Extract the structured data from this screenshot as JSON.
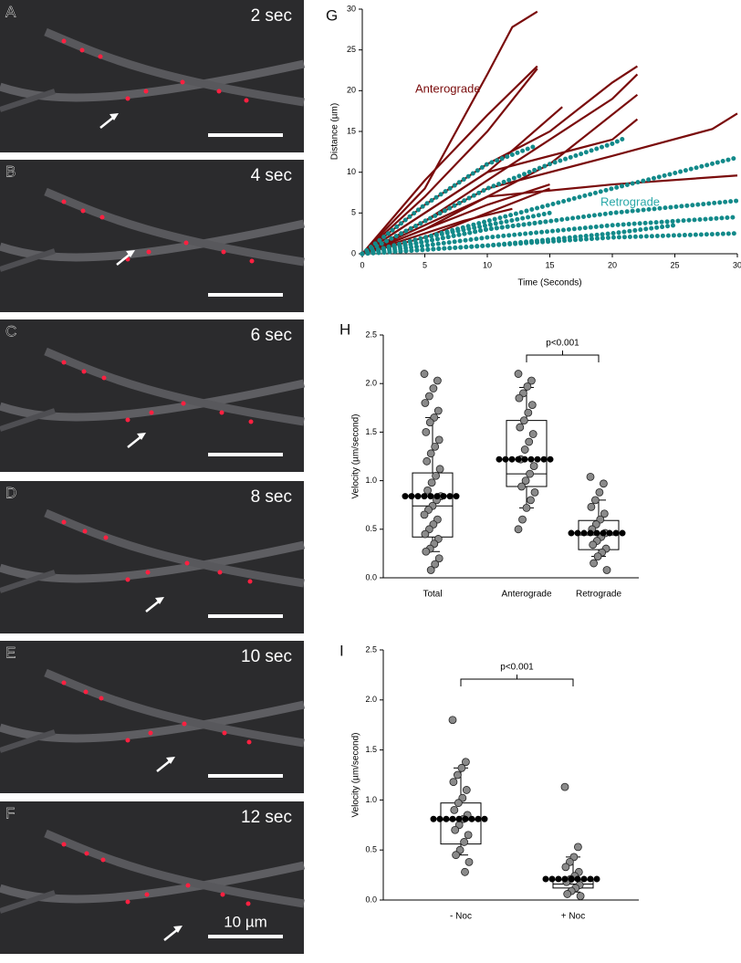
{
  "panels": [
    {
      "label": "A",
      "time": "2 sec"
    },
    {
      "label": "B",
      "time": "4 sec"
    },
    {
      "label": "C",
      "time": "6 sec"
    },
    {
      "label": "D",
      "time": "8 sec"
    },
    {
      "label": "E",
      "time": "10 sec"
    },
    {
      "label": "F",
      "time": "12 sec",
      "scale_label": "10 µm"
    }
  ],
  "chart_data": [
    {
      "type": "track",
      "label": "G",
      "xlabel": "Time (Seconds)",
      "ylabel": "Distance (µm)",
      "xlim": [
        0,
        30
      ],
      "xticks": [
        0,
        5,
        10,
        15,
        20,
        25,
        30
      ],
      "ylim": [
        0,
        30
      ],
      "yticks": [
        0,
        5,
        10,
        15,
        20,
        25,
        30
      ],
      "groups": [
        {
          "name": "Anterograde",
          "color": "#7a0c0c",
          "style": "line",
          "tracks": [
            {
              "x": [
                0,
                5,
                10,
                12,
                14
              ],
              "values": [
                0,
                8,
                22,
                27.8,
                29.7
              ]
            },
            {
              "x": [
                0,
                5,
                10,
                14
              ],
              "values": [
                0,
                9,
                17,
                23
              ]
            },
            {
              "x": [
                0,
                5,
                10,
                14
              ],
              "values": [
                0,
                7,
                15,
                22.7
              ]
            },
            {
              "x": [
                0,
                5,
                10,
                15,
                20,
                22
              ],
              "values": [
                0,
                6,
                11,
                15,
                21,
                23
              ]
            },
            {
              "x": [
                0,
                5,
                10,
                15,
                20,
                22
              ],
              "values": [
                0,
                4,
                9,
                14,
                19,
                22
              ]
            },
            {
              "x": [
                0,
                5,
                10,
                15,
                22
              ],
              "values": [
                0,
                3,
                7,
                11,
                19.5
              ]
            },
            {
              "x": [
                0,
                10,
                20,
                22
              ],
              "values": [
                0,
                10,
                14,
                16.5
              ]
            },
            {
              "x": [
                0,
                5,
                10,
                16
              ],
              "values": [
                0,
                5,
                10,
                18
              ]
            },
            {
              "x": [
                0,
                10,
                20,
                28,
                30
              ],
              "values": [
                0,
                8,
                12,
                15.3,
                17.2
              ]
            },
            {
              "x": [
                0,
                10,
                20,
                30
              ],
              "values": [
                0,
                7,
                8.5,
                9.6
              ]
            },
            {
              "x": [
                0,
                5,
                10,
                15
              ],
              "values": [
                0,
                3,
                6,
                8.5
              ]
            },
            {
              "x": [
                0,
                4,
                8,
                12
              ],
              "values": [
                0,
                2,
                4,
                5.5
              ]
            },
            {
              "x": [
                0,
                5,
                10,
                15
              ],
              "values": [
                0,
                2,
                5,
                8
              ]
            }
          ]
        },
        {
          "name": "Retrograde",
          "color": "#138a8a",
          "style": "dots",
          "tracks": [
            {
              "x": [
                0,
                5,
                10,
                14
              ],
              "values": [
                0,
                6,
                11,
                13.3
              ]
            },
            {
              "x": [
                0,
                5,
                10,
                15,
                20,
                21
              ],
              "values": [
                0,
                4,
                8,
                11,
                13.5,
                14.2
              ]
            },
            {
              "x": [
                0,
                10,
                20,
                30
              ],
              "values": [
                0,
                4,
                8,
                11.8
              ]
            },
            {
              "x": [
                0,
                10,
                20,
                30
              ],
              "values": [
                0,
                3,
                5,
                6.5
              ]
            },
            {
              "x": [
                0,
                10,
                20,
                30
              ],
              "values": [
                0,
                2,
                3.5,
                4.5
              ]
            },
            {
              "x": [
                0,
                10,
                20,
                30
              ],
              "values": [
                0,
                1,
                2,
                2.5
              ]
            },
            {
              "x": [
                0,
                5,
                10,
                15
              ],
              "values": [
                0,
                2,
                3.5,
                5
              ]
            },
            {
              "x": [
                0,
                5,
                10,
                15
              ],
              "values": [
                0,
                1.5,
                3,
                4
              ]
            },
            {
              "x": [
                0,
                10,
                20,
                25
              ],
              "values": [
                0,
                1,
                2.5,
                3.5
              ]
            }
          ]
        }
      ]
    },
    {
      "type": "box",
      "label": "H",
      "ylabel": "Velocity (µm/second)",
      "ylim": [
        0,
        2.5
      ],
      "yticks": [
        {
          "value": 0,
          "label": "0.0"
        },
        0.5,
        {
          "value": 1,
          "label": "1.0"
        },
        1.5,
        {
          "value": 2,
          "label": "2.0"
        },
        2.5
      ],
      "annotation": "p<0.001",
      "categories": [
        "Total",
        "Anterograde",
        "Retrograde"
      ],
      "boxes": [
        {
          "low": 0.27,
          "q1": 0.42,
          "median": 0.74,
          "q3": 1.08,
          "high": 1.65,
          "mean": 0.84,
          "points": [
            2.1,
            2.03,
            1.95,
            1.87,
            1.8,
            1.72,
            1.65,
            1.6,
            1.5,
            1.42,
            1.35,
            1.28,
            1.2,
            1.12,
            1.05,
            0.98,
            0.9,
            0.84,
            0.8,
            0.74,
            0.7,
            0.65,
            0.6,
            0.55,
            0.5,
            0.45,
            0.4,
            0.35,
            0.3,
            0.27,
            0.2,
            0.14,
            0.08
          ]
        },
        {
          "low": 0.72,
          "q1": 0.94,
          "median": 1.07,
          "q3": 1.62,
          "high": 1.96,
          "mean": 1.22,
          "points": [
            2.1,
            2.03,
            1.97,
            1.9,
            1.85,
            1.78,
            1.7,
            1.62,
            1.55,
            1.48,
            1.4,
            1.32,
            1.22,
            1.15,
            1.07,
            1.0,
            0.94,
            0.88,
            0.8,
            0.72,
            0.6,
            0.5
          ]
        },
        {
          "low": 0.22,
          "q1": 0.29,
          "median": 0.44,
          "q3": 0.59,
          "high": 0.8,
          "mean": 0.46,
          "points": [
            1.04,
            0.97,
            0.88,
            0.8,
            0.73,
            0.66,
            0.6,
            0.55,
            0.5,
            0.46,
            0.42,
            0.38,
            0.34,
            0.3,
            0.26,
            0.22,
            0.15,
            0.08
          ]
        }
      ]
    },
    {
      "type": "box",
      "label": "I",
      "ylabel": "Velocity (µm/second)",
      "ylim": [
        0,
        2.5
      ],
      "yticks": [
        {
          "value": 0,
          "label": "0.0"
        },
        0.5,
        {
          "value": 1,
          "label": "1.0"
        },
        1.5,
        {
          "value": 2,
          "label": "2.0"
        },
        2.5
      ],
      "annotation": "p<0.001",
      "categories": [
        "- Noc",
        "+ Noc"
      ],
      "boxes": [
        {
          "low": 0.45,
          "q1": 0.56,
          "median": 0.8,
          "q3": 0.97,
          "high": 1.32,
          "mean": 0.81,
          "points": [
            1.8,
            1.38,
            1.32,
            1.25,
            1.18,
            1.1,
            1.02,
            0.97,
            0.9,
            0.85,
            0.81,
            0.75,
            0.7,
            0.65,
            0.58,
            0.5,
            0.45,
            0.38,
            0.28
          ]
        },
        {
          "low": 0.08,
          "q1": 0.12,
          "median": 0.16,
          "q3": 0.2,
          "high": 0.43,
          "mean": 0.21,
          "points": [
            1.13,
            0.53,
            0.43,
            0.38,
            0.33,
            0.28,
            0.24,
            0.21,
            0.18,
            0.15,
            0.12,
            0.09,
            0.06,
            0.04
          ]
        }
      ]
    }
  ]
}
